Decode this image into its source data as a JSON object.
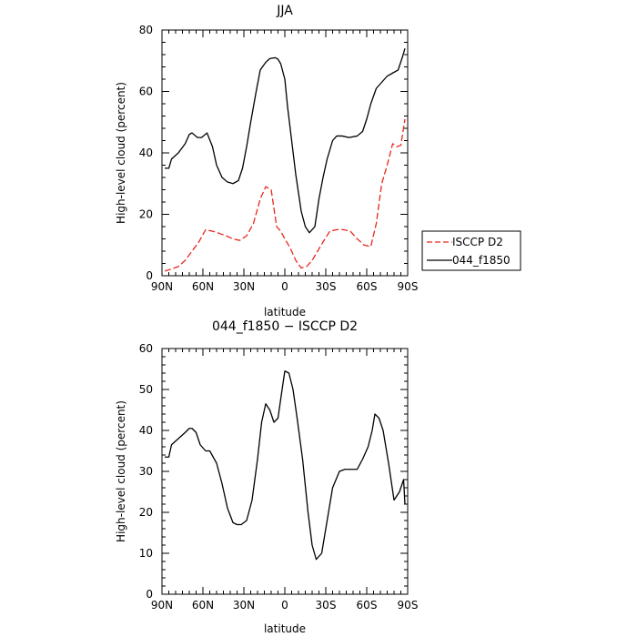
{
  "chart_data": [
    {
      "type": "line",
      "title": "JJA",
      "xlabel": "latitude",
      "ylabel": "High-level cloud (percent)",
      "xlim": [
        90,
        -90
      ],
      "ylim": [
        0,
        80
      ],
      "xticks": [
        90,
        60,
        30,
        0,
        -30,
        -60,
        -90
      ],
      "xticklabels": [
        "90N",
        "60N",
        "30N",
        "0",
        "30S",
        "60S",
        "90S"
      ],
      "yticks": [
        0,
        20,
        40,
        60,
        80
      ],
      "yticklabels": [
        "0",
        "20",
        "40",
        "60",
        "80"
      ],
      "legend": "right",
      "series": [
        {
          "name": "ISCCP D2",
          "color": "#e8271e",
          "dash": "dashed",
          "x": [
            88,
            83,
            78,
            73,
            68,
            63,
            58,
            53,
            48,
            43,
            38,
            33,
            28,
            23,
            18,
            14,
            10,
            8,
            6,
            3,
            0,
            -4,
            -8,
            -12,
            -16,
            -20,
            -24,
            -28,
            -33,
            -38,
            -43,
            -48,
            -53,
            -58,
            -63,
            -67,
            -71,
            -75,
            -79,
            -82,
            -85,
            -88
          ],
          "y": [
            1.5,
            2.2,
            3,
            5,
            8,
            11,
            15,
            14.5,
            13.8,
            13,
            12,
            11.5,
            13,
            17,
            25,
            29,
            28,
            22,
            16,
            14.5,
            12,
            9,
            5,
            2.5,
            3,
            5,
            8,
            11,
            14.5,
            15,
            15,
            14.5,
            12,
            10,
            9.5,
            17,
            30,
            36,
            43,
            42,
            42.5,
            51
          ]
        },
        {
          "name": "044_f1850",
          "color": "#000000",
          "dash": "solid",
          "x": [
            88,
            85,
            83,
            78,
            73,
            70,
            68,
            64,
            61,
            57,
            53,
            50,
            46,
            42,
            38,
            34,
            31,
            28,
            25,
            21,
            18,
            14,
            11,
            7,
            5,
            3,
            0,
            -2,
            -5,
            -8,
            -12,
            -15,
            -18,
            -22,
            -25,
            -28,
            -31,
            -35,
            -38,
            -42,
            -47,
            -53,
            -57,
            -60,
            -63,
            -67,
            -71,
            -75,
            -79,
            -83,
            -86,
            -88
          ],
          "y": [
            35,
            35,
            38,
            40,
            43,
            46,
            46.5,
            45,
            45,
            46.5,
            42,
            36,
            32,
            30.5,
            30,
            31,
            35,
            42,
            50,
            60,
            67,
            69.5,
            70.7,
            71,
            70.5,
            69,
            64,
            55,
            44,
            33,
            21,
            16,
            14,
            16,
            25,
            32,
            38,
            44,
            45.5,
            45.5,
            45,
            45.5,
            47,
            51,
            56,
            61,
            63,
            65,
            66,
            67,
            71,
            74
          ]
        }
      ]
    },
    {
      "type": "line",
      "title": "044_f1850 − ISCCP D2",
      "xlabel": "latitude",
      "ylabel": "High-level cloud (percent)",
      "xlim": [
        90,
        -90
      ],
      "ylim": [
        0,
        60
      ],
      "xticks": [
        90,
        60,
        30,
        0,
        -30,
        -60,
        -90
      ],
      "xticklabels": [
        "90N",
        "60N",
        "30N",
        "0",
        "30S",
        "60S",
        "90S"
      ],
      "yticks": [
        0,
        10,
        20,
        30,
        40,
        50,
        60
      ],
      "yticklabels": [
        "0",
        "10",
        "20",
        "30",
        "40",
        "50",
        "60"
      ],
      "series": [
        {
          "color": "#000000",
          "dash": "solid",
          "x": [
            88,
            85,
            83,
            78,
            73,
            70,
            68,
            65,
            62,
            58,
            55,
            50,
            46,
            42,
            38,
            35,
            32,
            28,
            24,
            20,
            17,
            14,
            11,
            8,
            5,
            2,
            0,
            -3,
            -6,
            -9,
            -13,
            -17,
            -20,
            -23,
            -27,
            -31,
            -35,
            -40,
            -44,
            -48,
            -53,
            -57,
            -61,
            -64,
            -66,
            -69,
            -72,
            -76,
            -80,
            -84,
            -87,
            -88
          ],
          "y": [
            33.5,
            33.5,
            36.5,
            38,
            39.5,
            40.5,
            40.5,
            39.5,
            36.5,
            35,
            35,
            32,
            27,
            21,
            17.5,
            17,
            17,
            18,
            23,
            33,
            42,
            46.5,
            45,
            42,
            43,
            50,
            54.5,
            54,
            50,
            43,
            33,
            20,
            12,
            8.5,
            10,
            18,
            26,
            30,
            30.5,
            30.5,
            30.5,
            33,
            36,
            40,
            44,
            43,
            40,
            32,
            23,
            25,
            28,
            22
          ]
        }
      ]
    }
  ]
}
